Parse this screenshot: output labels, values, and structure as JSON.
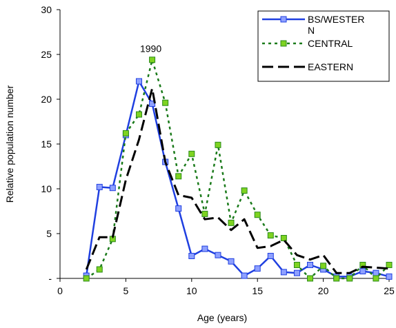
{
  "chart_data": {
    "type": "line",
    "title": "",
    "xlabel": "Age (years)",
    "ylabel": "Relative population number",
    "xlim": [
      0,
      25
    ],
    "ylim": [
      0,
      30
    ],
    "x_ticks": [
      "0",
      "5",
      "10",
      "15",
      "20",
      "25"
    ],
    "y_ticks": [
      "-",
      "5",
      "10",
      "15",
      "20",
      "25",
      "30"
    ],
    "grid": false,
    "legend_position": "top-right",
    "annotation": "1990",
    "annotation_x": 7,
    "annotation_y": 24.5,
    "series": [
      {
        "name": "BS/WESTERN",
        "legend_lines": [
          "BS/WESTER",
          "N"
        ],
        "color": "#1f3fe0",
        "style": "solid",
        "marker": "square",
        "x": [
          2,
          3,
          4,
          5,
          6,
          7,
          8,
          9,
          10,
          11,
          12,
          13,
          14,
          15,
          16,
          17,
          18,
          19,
          20,
          21,
          22,
          23,
          24,
          25
        ],
        "y": [
          0.3,
          10.2,
          10.1,
          16.0,
          22.0,
          19.5,
          13.0,
          7.8,
          2.5,
          3.3,
          2.6,
          1.9,
          0.3,
          1.1,
          2.5,
          0.7,
          0.6,
          1.5,
          1.0,
          0.2,
          0.2,
          0.8,
          0.6,
          0.2
        ]
      },
      {
        "name": "CENTRAL",
        "legend_lines": [
          "CENTRAL"
        ],
        "color": "#1a7a1a",
        "marker_fill": "#7ed321",
        "style": "dotted",
        "marker": "square",
        "x": [
          2,
          3,
          4,
          5,
          6,
          7,
          8,
          9,
          10,
          11,
          12,
          13,
          14,
          15,
          16,
          17,
          18,
          19,
          20,
          21,
          22,
          23,
          24,
          25
        ],
        "y": [
          0.0,
          1.0,
          4.4,
          16.2,
          18.3,
          24.4,
          19.6,
          11.4,
          13.9,
          7.2,
          14.9,
          6.2,
          9.8,
          7.1,
          4.8,
          4.5,
          1.5,
          0.0,
          1.4,
          0.0,
          0.0,
          1.5,
          0.0,
          1.5
        ]
      },
      {
        "name": "EASTERN",
        "legend_lines": [
          "EASTERN"
        ],
        "color": "#000000",
        "style": "dashed",
        "marker": "none",
        "x": [
          2,
          3,
          4,
          5,
          6,
          7,
          8,
          9,
          10,
          11,
          12,
          13,
          14,
          15,
          16,
          17,
          18,
          19,
          20,
          21,
          22,
          23,
          24,
          25
        ],
        "y": [
          1.0,
          4.6,
          4.6,
          11.0,
          15.5,
          21.2,
          13.0,
          9.3,
          9.0,
          6.6,
          6.8,
          5.4,
          6.6,
          3.4,
          3.6,
          4.3,
          2.6,
          2.1,
          2.6,
          0.6,
          0.6,
          1.3,
          1.2,
          1.1
        ]
      }
    ]
  }
}
